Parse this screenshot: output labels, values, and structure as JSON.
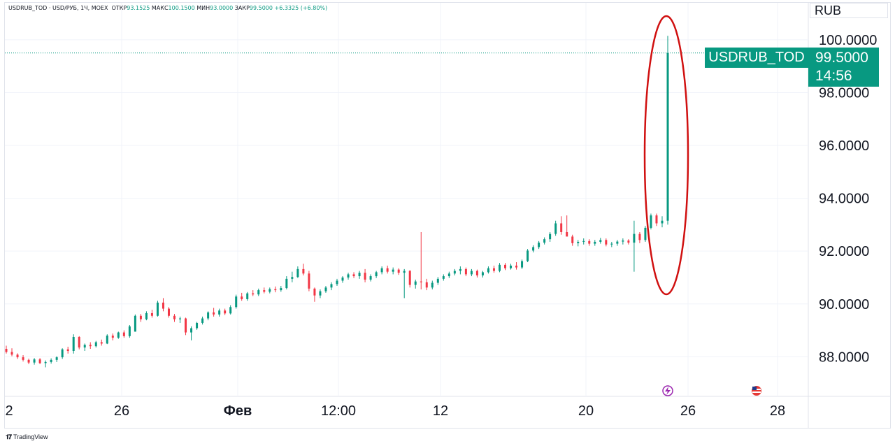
{
  "header": {
    "symbol": "USDRUB_TOD",
    "description": "USD/РУБ",
    "interval": "1Ч",
    "exchange": "MOEX",
    "open_label": "ОТКР",
    "open_value": "93.1525",
    "high_label": "МАКС",
    "high_value": "100.1500",
    "low_label": "МИН",
    "low_value": "93.0000",
    "close_label": "ЗАКР",
    "close_value": "99.5000",
    "change": "+6.3325 (+6.80%)"
  },
  "currency": "RUB",
  "last_price": {
    "symbol": "USDRUB_TOD",
    "price": "99.5000",
    "countdown": "14:56"
  },
  "watermark": "TradingView",
  "colors": {
    "up": "#089981",
    "down": "#f23645",
    "grid": "#f0f3fa",
    "highlight_ellipse": "#d01010"
  },
  "chart_data": {
    "type": "candlestick",
    "yaxis": {
      "ticks": [
        "88.0000",
        "90.0000",
        "92.0000",
        "94.0000",
        "96.0000",
        "98.0000",
        "100.0000"
      ],
      "ylim": [
        86.5,
        101.4
      ]
    },
    "xaxis": {
      "ticks": [
        "2",
        "26",
        "Фев",
        "12:00",
        "12",
        "20",
        "26",
        "28"
      ]
    },
    "series": [
      {
        "name": "USDRUB_TOD",
        "ohlc": [
          [
            88.3,
            88.42,
            88.12,
            88.18
          ],
          [
            88.18,
            88.32,
            88.02,
            88.08
          ],
          [
            88.08,
            88.13,
            87.92,
            87.98
          ],
          [
            87.98,
            88.06,
            87.82,
            87.88
          ],
          [
            87.88,
            87.93,
            87.72,
            87.78
          ],
          [
            87.78,
            87.95,
            87.7,
            87.9
          ],
          [
            87.9,
            87.95,
            87.72,
            87.76
          ],
          [
            87.76,
            87.86,
            87.6,
            87.8
          ],
          [
            87.8,
            87.94,
            87.74,
            87.88
          ],
          [
            87.88,
            88.02,
            87.8,
            87.98
          ],
          [
            87.98,
            88.32,
            87.92,
            88.28
          ],
          [
            88.28,
            88.38,
            88.12,
            88.22
          ],
          [
            88.22,
            88.85,
            88.12,
            88.75
          ],
          [
            88.75,
            88.78,
            88.28,
            88.35
          ],
          [
            88.35,
            88.5,
            88.22,
            88.45
          ],
          [
            88.45,
            88.55,
            88.3,
            88.4
          ],
          [
            88.4,
            88.6,
            88.35,
            88.55
          ],
          [
            88.55,
            88.65,
            88.42,
            88.5
          ],
          [
            88.5,
            88.85,
            88.48,
            88.8
          ],
          [
            88.8,
            88.88,
            88.62,
            88.72
          ],
          [
            88.72,
            88.95,
            88.68,
            88.92
          ],
          [
            88.92,
            89.0,
            88.72,
            88.78
          ],
          [
            88.78,
            89.2,
            88.72,
            89.15
          ],
          [
            88.95,
            89.6,
            88.95,
            89.55
          ],
          [
            89.55,
            89.62,
            89.32,
            89.42
          ],
          [
            89.42,
            89.72,
            89.38,
            89.65
          ],
          [
            89.65,
            89.78,
            89.48,
            89.55
          ],
          [
            89.55,
            90.12,
            89.52,
            90.05
          ],
          [
            90.05,
            90.22,
            89.72,
            89.82
          ],
          [
            89.82,
            89.88,
            89.48,
            89.55
          ],
          [
            89.55,
            89.62,
            89.32,
            89.42
          ],
          [
            89.42,
            89.52,
            89.28,
            89.45
          ],
          [
            89.45,
            89.48,
            88.82,
            88.92
          ],
          [
            88.92,
            89.15,
            88.62,
            89.08
          ],
          [
            89.08,
            89.32,
            89.02,
            89.28
          ],
          [
            89.28,
            89.52,
            89.22,
            89.45
          ],
          [
            89.45,
            89.72,
            89.38,
            89.68
          ],
          [
            89.68,
            89.85,
            89.52,
            89.6
          ],
          [
            89.6,
            89.82,
            89.52,
            89.75
          ],
          [
            89.75,
            89.82,
            89.58,
            89.64
          ],
          [
            89.64,
            89.95,
            89.6,
            89.88
          ],
          [
            89.88,
            90.35,
            89.82,
            90.28
          ],
          [
            90.28,
            90.42,
            90.12,
            90.18
          ],
          [
            90.18,
            90.45,
            90.12,
            90.4
          ],
          [
            90.4,
            90.52,
            90.3,
            90.36
          ],
          [
            90.36,
            90.58,
            90.3,
            90.52
          ],
          [
            90.52,
            90.62,
            90.4,
            90.46
          ],
          [
            90.46,
            90.62,
            90.4,
            90.56
          ],
          [
            90.56,
            90.66,
            90.44,
            90.52
          ],
          [
            90.52,
            90.68,
            90.46,
            90.6
          ],
          [
            90.6,
            91.05,
            90.55,
            90.95
          ],
          [
            90.95,
            91.22,
            90.82,
            91.02
          ],
          [
            91.02,
            91.42,
            90.98,
            91.32
          ],
          [
            91.32,
            91.52,
            91.08,
            91.15
          ],
          [
            91.15,
            91.25,
            90.48,
            90.58
          ],
          [
            90.58,
            90.62,
            90.08,
            90.32
          ],
          [
            90.32,
            90.55,
            90.22,
            90.48
          ],
          [
            90.48,
            90.68,
            90.42,
            90.62
          ],
          [
            90.62,
            90.82,
            90.52,
            90.75
          ],
          [
            90.75,
            90.95,
            90.68,
            90.88
          ],
          [
            90.88,
            91.05,
            90.8,
            91.0
          ],
          [
            91.0,
            91.18,
            90.92,
            91.12
          ],
          [
            91.12,
            91.2,
            90.98,
            91.05
          ],
          [
            91.05,
            91.25,
            90.95,
            91.18
          ],
          [
            91.18,
            91.32,
            90.82,
            90.92
          ],
          [
            90.92,
            91.12,
            90.85,
            91.05
          ],
          [
            91.05,
            91.25,
            90.98,
            91.2
          ],
          [
            91.2,
            91.42,
            91.12,
            91.35
          ],
          [
            91.35,
            91.45,
            91.15,
            91.22
          ],
          [
            91.22,
            91.38,
            91.12,
            91.3
          ],
          [
            91.3,
            91.35,
            91.1,
            91.18
          ],
          [
            91.18,
            91.32,
            90.22,
            91.25
          ],
          [
            91.25,
            91.28,
            90.62,
            90.72
          ],
          [
            90.72,
            90.92,
            90.58,
            90.85
          ],
          [
            90.85,
            92.72,
            90.55,
            90.82
          ],
          [
            90.82,
            90.95,
            90.52,
            90.62
          ],
          [
            90.62,
            90.88,
            90.55,
            90.8
          ],
          [
            90.8,
            91.02,
            90.72,
            90.95
          ],
          [
            90.95,
            91.12,
            90.88,
            91.05
          ],
          [
            91.05,
            91.22,
            90.98,
            91.15
          ],
          [
            91.15,
            91.32,
            91.08,
            91.25
          ],
          [
            91.25,
            91.42,
            91.12,
            91.32
          ],
          [
            91.32,
            91.38,
            91.05,
            91.12
          ],
          [
            91.12,
            91.32,
            91.05,
            91.25
          ],
          [
            91.25,
            91.3,
            91.0,
            91.08
          ],
          [
            91.08,
            91.25,
            91.0,
            91.2
          ],
          [
            91.2,
            91.42,
            91.15,
            91.35
          ],
          [
            91.35,
            91.45,
            91.18,
            91.25
          ],
          [
            91.25,
            91.55,
            91.2,
            91.48
          ],
          [
            91.48,
            91.55,
            91.28,
            91.35
          ],
          [
            91.35,
            91.52,
            91.3,
            91.45
          ],
          [
            91.45,
            91.58,
            91.3,
            91.38
          ],
          [
            91.38,
            91.68,
            91.32,
            91.62
          ],
          [
            91.62,
            92.08,
            91.58,
            92.02
          ],
          [
            92.02,
            92.22,
            91.95,
            92.15
          ],
          [
            92.15,
            92.38,
            92.08,
            92.32
          ],
          [
            92.32,
            92.52,
            92.25,
            92.45
          ],
          [
            92.45,
            92.72,
            92.35,
            92.65
          ],
          [
            92.65,
            93.15,
            92.58,
            93.05
          ],
          [
            93.05,
            93.32,
            92.62,
            92.72
          ],
          [
            92.72,
            93.35,
            92.65,
            92.55
          ],
          [
            92.55,
            92.62,
            92.2,
            92.3
          ],
          [
            92.3,
            92.42,
            92.18,
            92.35
          ],
          [
            92.35,
            92.48,
            92.25,
            92.38
          ],
          [
            92.38,
            92.45,
            92.2,
            92.28
          ],
          [
            92.28,
            92.42,
            92.2,
            92.35
          ],
          [
            92.35,
            92.5,
            92.28,
            92.42
          ],
          [
            92.42,
            92.48,
            92.18,
            92.25
          ],
          [
            92.25,
            92.35,
            92.15,
            92.28
          ],
          [
            92.28,
            92.42,
            92.2,
            92.36
          ],
          [
            92.36,
            92.48,
            92.25,
            92.4
          ],
          [
            92.4,
            92.45,
            92.25,
            92.32
          ],
          [
            92.32,
            93.15,
            91.22,
            92.65
          ],
          [
            92.65,
            92.72,
            92.3,
            92.42
          ],
          [
            92.42,
            92.95,
            92.35,
            92.88
          ],
          [
            92.88,
            93.42,
            92.82,
            93.35
          ],
          [
            93.35,
            93.42,
            92.95,
            93.05
          ],
          [
            93.05,
            93.32,
            92.9,
            93.15
          ],
          [
            93.15,
            100.15,
            93.0,
            99.5
          ]
        ]
      }
    ]
  }
}
